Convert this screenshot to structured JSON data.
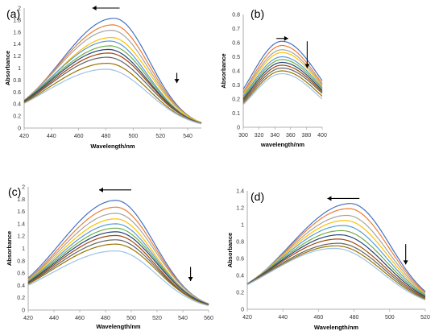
{
  "chart_data": [
    {
      "type": "line",
      "panel_label": "(a)",
      "xlabel": "Wavelength/nm",
      "ylabel": "Absorbance",
      "xlim": [
        420,
        550
      ],
      "ylim": [
        0,
        2
      ],
      "xticks": [
        "420",
        "440",
        "460",
        "480",
        "500",
        "520",
        "540"
      ],
      "yticks": [
        "0",
        "0.2",
        "0.4",
        "0.6",
        "0.8",
        "1",
        "1.2",
        "1.4",
        "1.6",
        "1.8",
        "2"
      ],
      "grid": false,
      "legend": "none",
      "peak_x": [
        486,
        485,
        484,
        484,
        483,
        483,
        482,
        482,
        481,
        481,
        480
      ],
      "series": [
        {
          "peak": 1.83,
          "x_start": 0.45,
          "x_end": 0.09
        },
        {
          "peak": 1.72,
          "x_start": 0.46,
          "x_end": 0.09
        },
        {
          "peak": 1.63,
          "x_start": 0.46,
          "x_end": 0.09
        },
        {
          "peak": 1.51,
          "x_start": 0.45,
          "x_end": 0.09
        },
        {
          "peak": 1.45,
          "x_start": 0.46,
          "x_end": 0.08
        },
        {
          "peak": 1.37,
          "x_start": 0.46,
          "x_end": 0.08
        },
        {
          "peak": 1.31,
          "x_start": 0.45,
          "x_end": 0.08
        },
        {
          "peak": 1.25,
          "x_start": 0.44,
          "x_end": 0.08
        },
        {
          "peak": 1.18,
          "x_start": 0.43,
          "x_end": 0.08
        },
        {
          "peak": 1.08,
          "x_start": 0.42,
          "x_end": 0.07
        },
        {
          "peak": 0.98,
          "x_start": 0.41,
          "x_end": 0.07
        }
      ],
      "arrows": [
        {
          "direction": "left",
          "x_from": 490,
          "x_to": 470,
          "y": 2.0
        },
        {
          "direction": "down",
          "x": 532,
          "y_from": 0.92,
          "y_to": 0.75
        }
      ]
    },
    {
      "type": "line",
      "panel_label": "(b)",
      "xlabel": "wavelength/nm",
      "ylabel": "Absorbance",
      "xlim": [
        300,
        400
      ],
      "ylim": [
        0,
        0.8
      ],
      "xticks": [
        "300",
        "320",
        "340",
        "360",
        "380",
        "400"
      ],
      "yticks": [
        "0",
        "0.1",
        "0.2",
        "0.3",
        "0.4",
        "0.5",
        "0.6",
        "0.7",
        "0.8"
      ],
      "grid": false,
      "legend": "none",
      "peak_x": [
        349,
        349,
        349,
        349,
        349,
        349,
        349,
        349,
        349,
        349,
        349
      ],
      "series": [
        {
          "start": 0.27,
          "peak": 0.61,
          "end": 0.33
        },
        {
          "start": 0.25,
          "peak": 0.58,
          "end": 0.31
        },
        {
          "start": 0.24,
          "peak": 0.55,
          "end": 0.3
        },
        {
          "start": 0.23,
          "peak": 0.53,
          "end": 0.29
        },
        {
          "start": 0.22,
          "peak": 0.5,
          "end": 0.28
        },
        {
          "start": 0.21,
          "peak": 0.48,
          "end": 0.27
        },
        {
          "start": 0.2,
          "peak": 0.46,
          "end": 0.26
        },
        {
          "start": 0.19,
          "peak": 0.44,
          "end": 0.25
        },
        {
          "start": 0.18,
          "peak": 0.42,
          "end": 0.24
        },
        {
          "start": 0.17,
          "peak": 0.4,
          "end": 0.22
        },
        {
          "start": 0.16,
          "peak": 0.38,
          "end": 0.2
        }
      ],
      "arrows": [
        {
          "direction": "right",
          "x_from": 342,
          "x_to": 357,
          "y": 0.63
        },
        {
          "direction": "down",
          "x": 381,
          "y_from": 0.61,
          "y_to": 0.42
        }
      ]
    },
    {
      "type": "line",
      "panel_label": "(c)",
      "xlabel": "Wavelength/nm",
      "ylabel": "Absorbance",
      "xlim": [
        420,
        560
      ],
      "ylim": [
        0,
        2
      ],
      "xticks": [
        "420",
        "440",
        "460",
        "480",
        "500",
        "520",
        "540",
        "560"
      ],
      "yticks": [
        "0",
        "0.2",
        "0.4",
        "0.6",
        "0.8",
        "1",
        "1.2",
        "1.4",
        "1.6",
        "1.8",
        "2"
      ],
      "grid": false,
      "legend": "none",
      "peak_x": [
        488,
        488,
        488,
        488,
        488,
        488,
        488,
        488,
        488,
        488,
        488
      ],
      "series": [
        {
          "peak": 1.78,
          "x_start": 0.52,
          "x_end": 0.1
        },
        {
          "peak": 1.67,
          "x_start": 0.5,
          "x_end": 0.1
        },
        {
          "peak": 1.57,
          "x_start": 0.49,
          "x_end": 0.1
        },
        {
          "peak": 1.48,
          "x_start": 0.48,
          "x_end": 0.09
        },
        {
          "peak": 1.4,
          "x_start": 0.47,
          "x_end": 0.09
        },
        {
          "peak": 1.33,
          "x_start": 0.46,
          "x_end": 0.09
        },
        {
          "peak": 1.27,
          "x_start": 0.45,
          "x_end": 0.09
        },
        {
          "peak": 1.21,
          "x_start": 0.44,
          "x_end": 0.08
        },
        {
          "peak": 1.14,
          "x_start": 0.43,
          "x_end": 0.08
        },
        {
          "peak": 1.07,
          "x_start": 0.42,
          "x_end": 0.08
        },
        {
          "peak": 0.96,
          "x_start": 0.4,
          "x_end": 0.07
        }
      ],
      "arrows": [
        {
          "direction": "left",
          "x_from": 500,
          "x_to": 475,
          "y": 1.95
        },
        {
          "direction": "down",
          "x": 546,
          "y_from": 0.7,
          "y_to": 0.47
        }
      ]
    },
    {
      "type": "line",
      "panel_label": "(d)",
      "xlabel": "Wavelength/nm",
      "ylabel": "Absorbance",
      "xlim": [
        420,
        520
      ],
      "ylim": [
        0,
        1.4
      ],
      "xticks": [
        "420",
        "440",
        "460",
        "480",
        "500",
        "520"
      ],
      "yticks": [
        "0",
        "0.2",
        "0.4",
        "0.6",
        "0.8",
        "1",
        "1.2",
        "1.4"
      ],
      "grid": false,
      "legend": "none",
      "peak_x": [
        478,
        477,
        476,
        475,
        474,
        473,
        472,
        471,
        471,
        470,
        469
      ],
      "series": [
        {
          "peak": 1.25,
          "x_start": 0.29,
          "x_end": 0.21
        },
        {
          "peak": 1.19,
          "x_start": 0.29,
          "x_end": 0.2
        },
        {
          "peak": 1.11,
          "x_start": 0.3,
          "x_end": 0.19
        },
        {
          "peak": 1.05,
          "x_start": 0.3,
          "x_end": 0.18
        },
        {
          "peak": 0.99,
          "x_start": 0.3,
          "x_end": 0.17
        },
        {
          "peak": 0.93,
          "x_start": 0.3,
          "x_end": 0.16
        },
        {
          "peak": 0.88,
          "x_start": 0.3,
          "x_end": 0.15
        },
        {
          "peak": 0.83,
          "x_start": 0.3,
          "x_end": 0.14
        },
        {
          "peak": 0.78,
          "x_start": 0.3,
          "x_end": 0.13
        },
        {
          "peak": 0.75,
          "x_start": 0.29,
          "x_end": 0.12
        },
        {
          "peak": 0.72,
          "x_start": 0.29,
          "x_end": 0.11
        }
      ],
      "arrows": [
        {
          "direction": "left",
          "x_from": 483,
          "x_to": 465,
          "y": 1.31
        },
        {
          "direction": "down",
          "x": 509,
          "y_from": 0.77,
          "y_to": 0.53
        }
      ]
    }
  ],
  "series_colors": [
    "#4472c4",
    "#ed7d31",
    "#a5a5a5",
    "#ffc000",
    "#5b9bd5",
    "#70ad47",
    "#264478",
    "#9e480e",
    "#636363",
    "#997300",
    "#9dc3e6"
  ]
}
